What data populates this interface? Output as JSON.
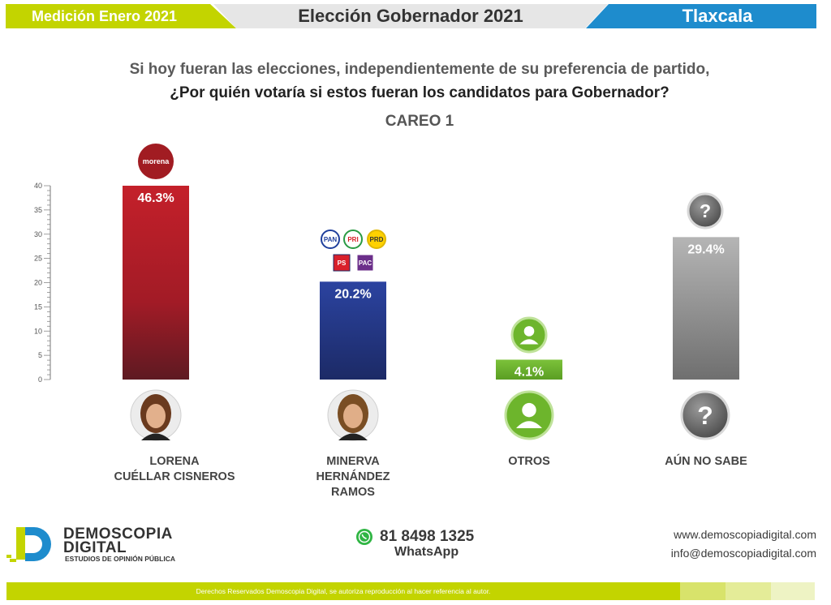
{
  "header": {
    "left": "Medición Enero 2021",
    "center": "Elección Gobernador 2021",
    "right": "Tlaxcala"
  },
  "question": {
    "line1": "Si hoy fueran las elecciones, independientemente de su preferencia de partido,",
    "line2": "¿Por quién votaría si estos fueran los candidatos para Gobernador?"
  },
  "subtitle": "CAREO 1",
  "chart_data": {
    "type": "bar",
    "categories": [
      "LORENA CUÉLLAR CISNEROS",
      "MINERVA HERNÁNDEZ RAMOS",
      "OTROS",
      "AÚN NO SABE"
    ],
    "values": [
      46.3,
      20.2,
      4.1,
      29.4
    ],
    "value_labels": [
      "46.3%",
      "20.2%",
      "4.1%",
      "29.4%"
    ],
    "colors": [
      "#a81c22",
      "#243a8c",
      "#6db52c",
      "#9a9a9a"
    ],
    "yticks": [
      0,
      5,
      10,
      15,
      20,
      25,
      30,
      35,
      40
    ],
    "ylim": [
      0,
      40
    ],
    "party_labels": {
      "c0": [
        "morena"
      ],
      "c1": [
        "PAN",
        "PRI",
        "PRD",
        "PS",
        "PAC"
      ]
    }
  },
  "candidates": [
    {
      "line1": "LORENA",
      "line2": "CUÉLLAR CISNEROS",
      "line3": ""
    },
    {
      "line1": "MINERVA",
      "line2": "HERNÁNDEZ",
      "line3": "RAMOS"
    },
    {
      "line1": "OTROS",
      "line2": "",
      "line3": ""
    },
    {
      "line1": "AÚN NO SABE",
      "line2": "",
      "line3": ""
    }
  ],
  "footer": {
    "brand_line1": "DEMOSCOPIA",
    "brand_line2": "DIGITAL",
    "brand_tagline": "ESTUDIOS DE OPINIÓN PÚBLICA",
    "phone": "81 8498 1325",
    "phone_label": "WhatsApp",
    "website": "www.demoscopiadigital.com",
    "email": "info@demoscopiadigital.com",
    "copyright": "Derechos Reservados Demoscopia Digital, se autoriza reproducción al hacer referencia al autor."
  }
}
